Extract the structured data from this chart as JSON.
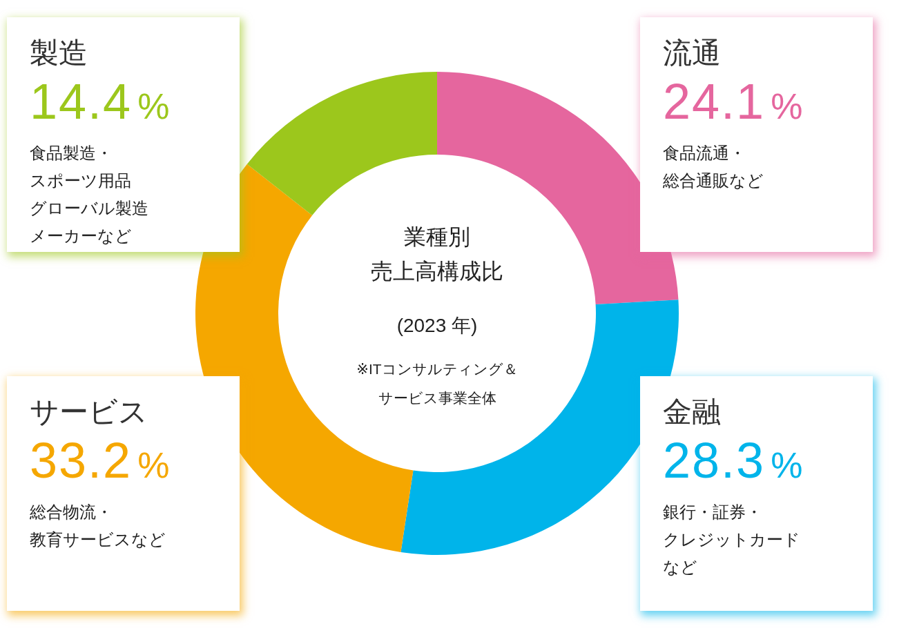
{
  "chart_data": {
    "type": "donut",
    "title": "業種別売上高構成比",
    "subtitle": "(2023 年)",
    "categories": [
      "流通",
      "金融",
      "サービス",
      "製造"
    ],
    "values": [
      24.1,
      28.3,
      33.2,
      14.4
    ],
    "colors": [
      "#e5669e",
      "#00b4ea",
      "#f5a700",
      "#9cc71c"
    ],
    "value_labels": [
      "24.1%",
      "28.3%",
      "33.2%",
      "14.4%"
    ],
    "annotations": [
      "食品流通・総合通販など",
      "銀行・証券・クレジットカードなど",
      "総合物流・教育サービスなど",
      "食品製造・スポーツ用品グローバル製造メーカーなど",
      "※ITコンサルティング＆サービス事業全体"
    ],
    "legend": false
  }
}
